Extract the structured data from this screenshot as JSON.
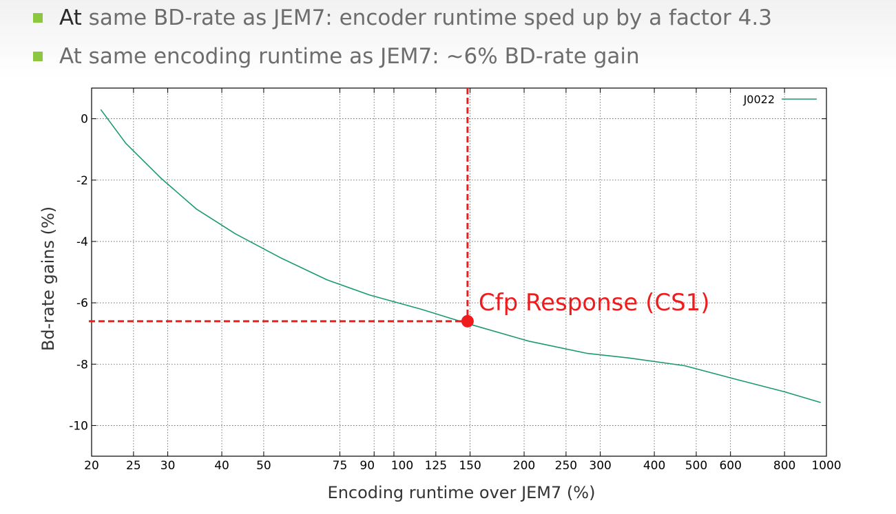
{
  "slide": {
    "bullets": [
      {
        "lead": "At",
        "rest": " same BD-rate as JEM7: encoder runtime sped up by a factor 4.3"
      },
      {
        "lead": "",
        "rest": "At same encoding runtime as JEM7: ~6% BD-rate gain"
      }
    ]
  },
  "colors": {
    "bullet": "#8dc63f",
    "series": "#1a9a6c",
    "annotation": "#ee1c1c",
    "grid": "#555555",
    "frame": "#000000"
  },
  "chart_data": {
    "type": "line",
    "x_scale": "log",
    "xlim": [
      20,
      1000
    ],
    "ylim": [
      -11,
      1
    ],
    "grid": true,
    "legend_placement": "top-right",
    "title": "",
    "xlabel": "Encoding runtime over JEM7 (%)",
    "ylabel": "Bd-rate gains (%)",
    "x_ticks": [
      {
        "value": 20,
        "label": "20"
      },
      {
        "value": 25,
        "label": "25"
      },
      {
        "value": 30,
        "label": "30"
      },
      {
        "value": 40,
        "label": "40"
      },
      {
        "value": 50,
        "label": "50"
      },
      {
        "value": 75,
        "label": "75"
      },
      {
        "value": 90,
        "label": "90"
      },
      {
        "value": 100,
        "label": "100"
      },
      {
        "value": 125,
        "label": "125"
      },
      {
        "value": 150,
        "label": "150"
      },
      {
        "value": 200,
        "label": "200"
      },
      {
        "value": 250,
        "label": "250"
      },
      {
        "value": 300,
        "label": "300"
      },
      {
        "value": 400,
        "label": "400"
      },
      {
        "value": 500,
        "label": "500"
      },
      {
        "value": 600,
        "label": "600"
      },
      {
        "value": 800,
        "label": "800"
      },
      {
        "value": 1000,
        "label": "1000"
      }
    ],
    "y_ticks": [
      {
        "value": 0,
        "label": "0"
      },
      {
        "value": -2,
        "label": "-2"
      },
      {
        "value": -4,
        "label": "-4"
      },
      {
        "value": -6,
        "label": "-6"
      },
      {
        "value": -8,
        "label": "-8"
      },
      {
        "value": -10,
        "label": "-10"
      }
    ],
    "series": [
      {
        "name": "J0022",
        "x": [
          21,
          24,
          29,
          35,
          43,
          55,
          70,
          88,
          115,
          150,
          205,
          280,
          350,
          470,
          620,
          800,
          970
        ],
        "y": [
          0.3,
          -0.8,
          -1.95,
          -2.95,
          -3.75,
          -4.55,
          -5.25,
          -5.75,
          -6.2,
          -6.7,
          -7.25,
          -7.65,
          -7.8,
          -8.05,
          -8.5,
          -8.9,
          -9.25
        ]
      }
    ],
    "annotations": [
      {
        "label": "Cfp Response (CS1)",
        "x": 148,
        "y": -6.6
      }
    ]
  }
}
